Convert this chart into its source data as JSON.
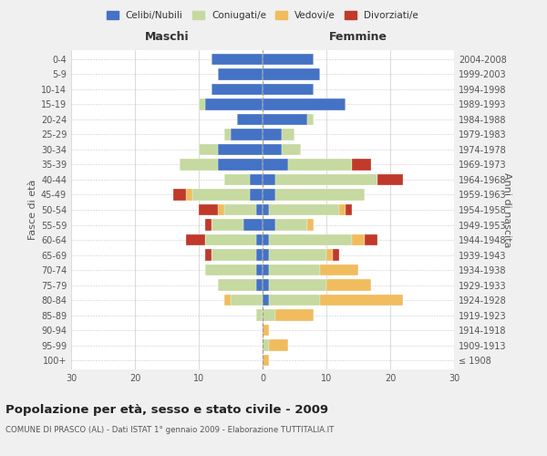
{
  "age_groups": [
    "100+",
    "95-99",
    "90-94",
    "85-89",
    "80-84",
    "75-79",
    "70-74",
    "65-69",
    "60-64",
    "55-59",
    "50-54",
    "45-49",
    "40-44",
    "35-39",
    "30-34",
    "25-29",
    "20-24",
    "15-19",
    "10-14",
    "5-9",
    "0-4"
  ],
  "birth_years": [
    "≤ 1908",
    "1909-1913",
    "1914-1918",
    "1919-1923",
    "1924-1928",
    "1929-1933",
    "1934-1938",
    "1939-1943",
    "1944-1948",
    "1949-1953",
    "1954-1958",
    "1959-1963",
    "1964-1968",
    "1969-1973",
    "1974-1978",
    "1979-1983",
    "1984-1988",
    "1989-1993",
    "1994-1998",
    "1999-2003",
    "2004-2008"
  ],
  "colors": {
    "celibi": "#4472c4",
    "coniugati": "#c5d9a0",
    "vedovi": "#f0bc5e",
    "divorziati": "#c0392b"
  },
  "maschi": {
    "celibi": [
      0,
      0,
      0,
      0,
      0,
      1,
      1,
      1,
      1,
      3,
      1,
      2,
      2,
      7,
      7,
      5,
      4,
      9,
      8,
      7,
      8
    ],
    "coniugati": [
      0,
      0,
      0,
      1,
      5,
      6,
      8,
      7,
      8,
      5,
      5,
      9,
      4,
      6,
      3,
      1,
      0,
      1,
      0,
      0,
      0
    ],
    "vedovi": [
      0,
      0,
      0,
      0,
      1,
      0,
      0,
      0,
      0,
      0,
      1,
      1,
      0,
      0,
      0,
      0,
      0,
      0,
      0,
      0,
      0
    ],
    "divorziati": [
      0,
      0,
      0,
      0,
      0,
      0,
      0,
      1,
      3,
      1,
      3,
      2,
      0,
      0,
      0,
      0,
      0,
      0,
      0,
      0,
      0
    ]
  },
  "femmine": {
    "celibi": [
      0,
      0,
      0,
      0,
      1,
      1,
      1,
      1,
      1,
      2,
      1,
      2,
      2,
      4,
      3,
      3,
      7,
      13,
      8,
      9,
      8
    ],
    "coniugati": [
      0,
      1,
      0,
      2,
      8,
      9,
      8,
      9,
      13,
      5,
      11,
      14,
      16,
      10,
      3,
      2,
      1,
      0,
      0,
      0,
      0
    ],
    "vedovi": [
      1,
      3,
      1,
      6,
      13,
      7,
      6,
      1,
      2,
      1,
      1,
      0,
      0,
      0,
      0,
      0,
      0,
      0,
      0,
      0,
      0
    ],
    "divorziati": [
      0,
      0,
      0,
      0,
      0,
      0,
      0,
      1,
      2,
      0,
      1,
      0,
      4,
      3,
      0,
      0,
      0,
      0,
      0,
      0,
      0
    ]
  },
  "xlim": 30,
  "title": "Popolazione per età, sesso e stato civile - 2009",
  "subtitle": "COMUNE DI PRASCO (AL) - Dati ISTAT 1° gennaio 2009 - Elaborazione TUTTITALIA.IT",
  "ylabel_left": "Fasce di età",
  "ylabel_right": "Anni di nascita",
  "xlabel_maschi": "Maschi",
  "xlabel_femmine": "Femmine",
  "legend_labels": [
    "Celibi/Nubili",
    "Coniugati/e",
    "Vedovi/e",
    "Divorziati/e"
  ],
  "bg_color": "#f0f0f0",
  "plot_bg": "#ffffff",
  "grid_color": "#cccccc"
}
